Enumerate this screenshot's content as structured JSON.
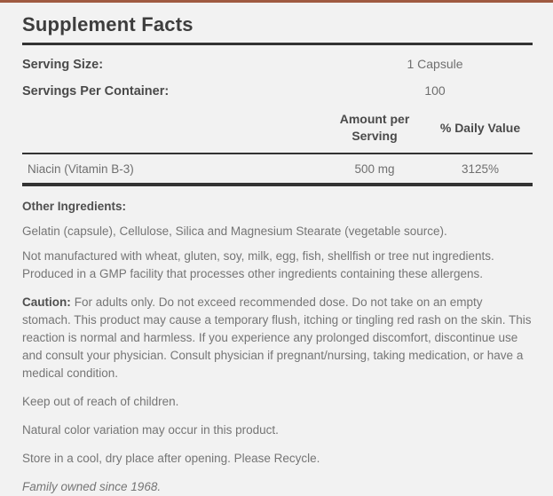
{
  "panel": {
    "title": "Supplement Facts",
    "serving_rows": [
      {
        "label": "Serving Size:",
        "value": "1 Capsule"
      },
      {
        "label": "Servings Per Container:",
        "value": "100"
      }
    ],
    "table": {
      "columns": {
        "amount": "Amount per Serving",
        "daily_value": "% Daily Value"
      },
      "rows": [
        {
          "name": "Niacin (Vitamin B-3)",
          "amount": "500 mg",
          "daily_value": "3125%"
        }
      ]
    },
    "other_ingredients_label": "Other Ingredients:",
    "other_ingredients": "Gelatin (capsule), Cellulose, Silica and Magnesium Stearate (vegetable source).",
    "allergen_statement": "Not manufactured with wheat, gluten, soy, milk, egg, fish, shellfish or tree nut ingredients. Produced in a GMP facility that processes other ingredients containing these allergens.",
    "caution_label": "Caution:",
    "caution_text": "For adults only. Do not exceed recommended dose. Do not take on an empty stomach. This product may cause a temporary flush, itching or tingling red rash on the skin. This reaction is normal and harmless. If you experience any prolonged discomfort, discontinue use and consult your physician. Consult physician if pregnant/nursing, taking medication, or have a medical condition.",
    "keep_out": "Keep out of reach of children.",
    "color_variation": "Natural color variation may occur in this product.",
    "storage": "Store in a cool, dry place after opening. Please Recycle.",
    "family_note": "Family owned since 1968.",
    "colors": {
      "accent_border": "#9f5a41",
      "background": "#f2f2f2",
      "rule": "#333333",
      "heading_text": "#3d3d3d",
      "label_text": "#4a4a4a",
      "body_text": "#757575"
    }
  }
}
